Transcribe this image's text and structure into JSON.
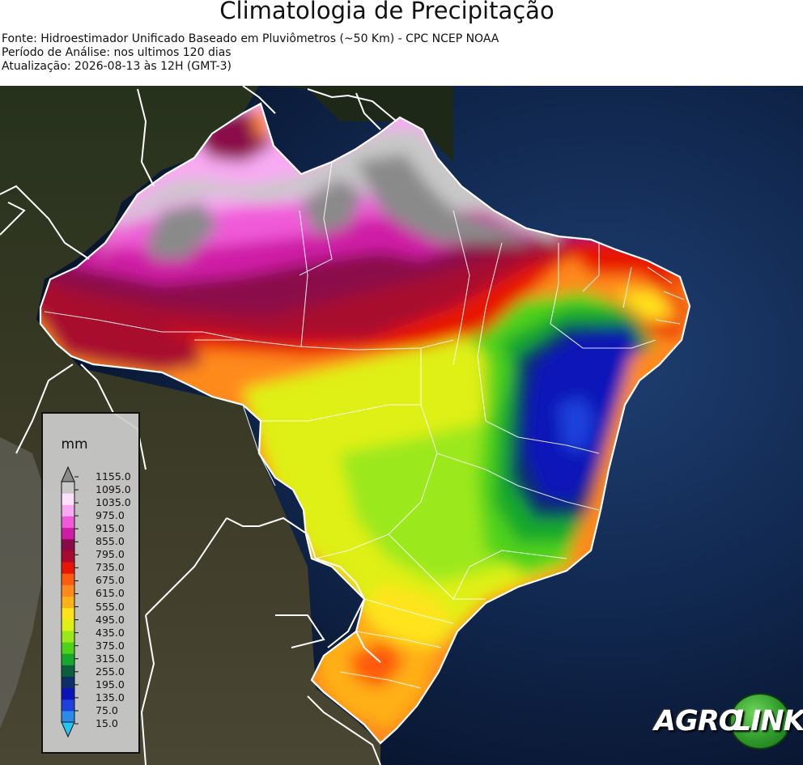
{
  "header": {
    "title": "Climatologia de Precipitação",
    "source": "Fonte: Hidroestimador Unificado Baseado em Pluviômetros (~50 Km) - CPC NCEP NOAA",
    "period": "Período de Análise: nos ultimos 120 dias",
    "updated": "Atualização: 2026-08-13 às 12H (GMT-3)"
  },
  "legend": {
    "unit": "mm",
    "ticks": [
      "1155.0",
      "1095.0",
      "1035.0",
      "975.0",
      "915.0",
      "855.0",
      "795.0",
      "735.0",
      "675.0",
      "615.0",
      "555.0",
      "495.0",
      "435.0",
      "375.0",
      "315.0",
      "255.0",
      "195.0",
      "135.0",
      "75.0",
      "15.0"
    ],
    "colors": [
      "#1fc8f2",
      "#2a8ce8",
      "#1d3fdb",
      "#0b12b8",
      "#0c2f66",
      "#0b5f3c",
      "#16a82c",
      "#4fd21a",
      "#9be81a",
      "#dff017",
      "#ffe31a",
      "#ffb019",
      "#ff8a1a",
      "#ff5a10",
      "#e81505",
      "#a80b2f",
      "#8a0a49",
      "#cf1ca6",
      "#f05ad8",
      "#f7aaf2",
      "#fbe1fb",
      "#c8c8c8",
      "#8a8a8a"
    ]
  },
  "logo": {
    "part1": "AGRO",
    "part2": "LINK"
  }
}
